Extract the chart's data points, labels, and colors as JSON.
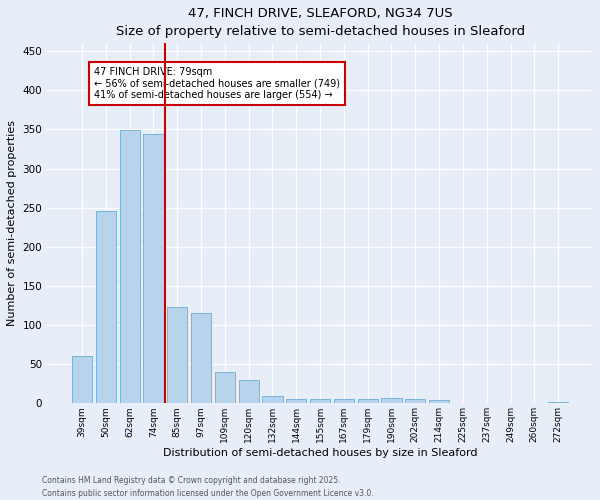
{
  "title": "47, FINCH DRIVE, SLEAFORD, NG34 7US",
  "subtitle": "Size of property relative to semi-detached houses in Sleaford",
  "xlabel": "Distribution of semi-detached houses by size in Sleaford",
  "ylabel": "Number of semi-detached properties",
  "categories": [
    "39sqm",
    "50sqm",
    "62sqm",
    "74sqm",
    "85sqm",
    "97sqm",
    "109sqm",
    "120sqm",
    "132sqm",
    "144sqm",
    "155sqm",
    "167sqm",
    "179sqm",
    "190sqm",
    "202sqm",
    "214sqm",
    "225sqm",
    "237sqm",
    "249sqm",
    "260sqm",
    "272sqm"
  ],
  "values": [
    60,
    246,
    349,
    344,
    123,
    115,
    40,
    30,
    9,
    5,
    5,
    5,
    6,
    7,
    5,
    4,
    1,
    0,
    0,
    0,
    2
  ],
  "bar_color": "#b8d4ed",
  "bar_edge_color": "#6aaed6",
  "vline_x": 3.5,
  "vline_color": "#cc0000",
  "annotation_title": "47 FINCH DRIVE: 79sqm",
  "annotation_line1": "← 56% of semi-detached houses are smaller (749)",
  "annotation_line2": "41% of semi-detached houses are larger (554) →",
  "annotation_box_color": "#cc0000",
  "ylim": [
    0,
    460
  ],
  "yticks": [
    0,
    50,
    100,
    150,
    200,
    250,
    300,
    350,
    400,
    450
  ],
  "footer_line1": "Contains HM Land Registry data © Crown copyright and database right 2025.",
  "footer_line2": "Contains public sector information licensed under the Open Government Licence v3.0.",
  "bg_color": "#e8eef8",
  "plot_bg_color": "#e8eef8",
  "title_fontsize": 11,
  "subtitle_fontsize": 9
}
